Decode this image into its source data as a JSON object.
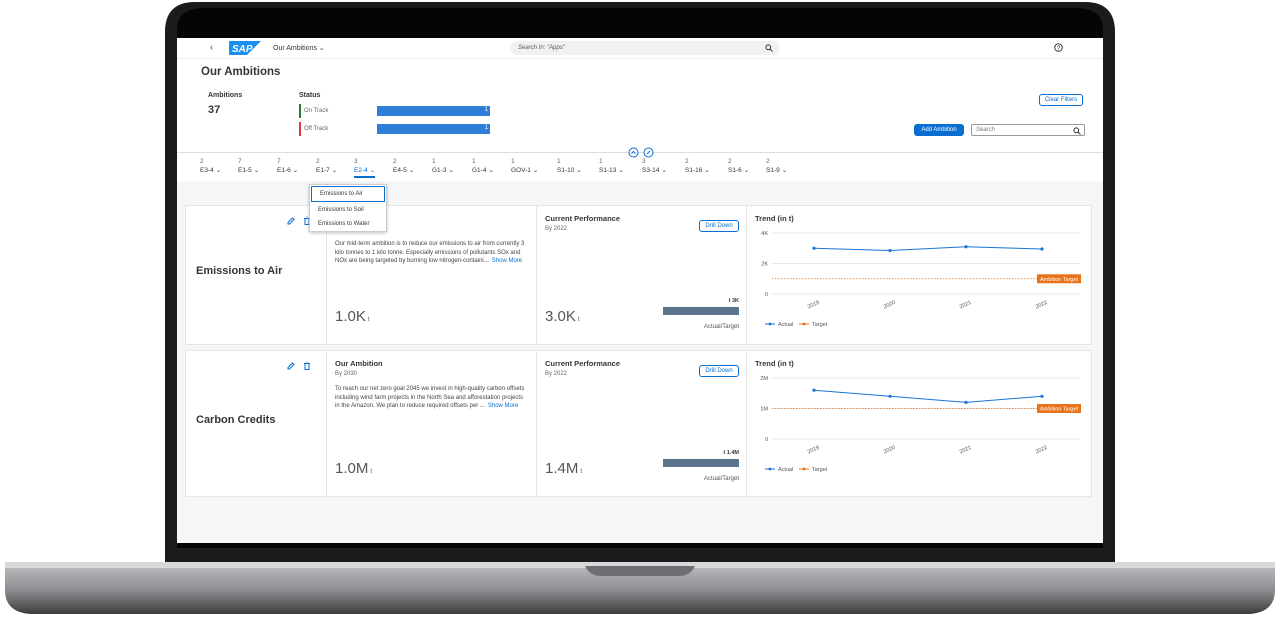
{
  "header": {
    "app": "Our Ambitions",
    "search_placeholder": "Search In: \"Apps\""
  },
  "page_title": "Our Ambitions",
  "kpis": {
    "ambitions_label": "Ambitions",
    "ambitions_value": 37,
    "status_label": "Status",
    "status": [
      {
        "name": "On Track",
        "value": 1,
        "color": "#2b7d2b"
      },
      {
        "name": "Off Track",
        "value": 1,
        "color": "#e03b3b"
      }
    ]
  },
  "actions": {
    "clear_filters": "Clear Filters",
    "add_ambition": "Add Ambition",
    "search_placeholder": "Search"
  },
  "tabs": [
    {
      "count": 2,
      "label": "E3-4"
    },
    {
      "count": 7,
      "label": "E1-5"
    },
    {
      "count": 7,
      "label": "E1-6"
    },
    {
      "count": 2,
      "label": "E1-7"
    },
    {
      "count": 3,
      "label": "E2-4",
      "selected": true
    },
    {
      "count": 2,
      "label": "E4-5"
    },
    {
      "count": 1,
      "label": "G1-3"
    },
    {
      "count": 1,
      "label": "G1-4"
    },
    {
      "count": 1,
      "label": "GOV-1"
    },
    {
      "count": 1,
      "label": "S1-10"
    },
    {
      "count": 1,
      "label": "S1-13"
    },
    {
      "count": 3,
      "label": "S3-14"
    },
    {
      "count": 2,
      "label": "S1-16"
    },
    {
      "count": 2,
      "label": "S1-6"
    },
    {
      "count": 2,
      "label": "S1-9"
    }
  ],
  "dropdown": [
    "Emissions to Air",
    "Emissions to Soil",
    "Emissions to Water"
  ],
  "cards": [
    {
      "name": "Emissions to Air",
      "ambition": {
        "text": "Our mid-term ambition is to reduce our emissions to air from currently 3 kilo tonnes to 1 kilo tonne. Especially emissions of pollutants SOx and NOx are being targeted by burning low nitrogen-containi...",
        "more": "Show More",
        "value": "1.0K",
        "unit": "t"
      },
      "performance": {
        "title": "Current Performance",
        "by": "By 2022",
        "button": "Drill Down",
        "value": "3.0K",
        "unit": "t",
        "bar_label": "t 3K",
        "caption": "Actual/Target"
      },
      "trend": {
        "title": "Trend (in t)",
        "categories": [
          "2019",
          "2020",
          "2021",
          "2022"
        ],
        "ylim": [
          0,
          4000
        ],
        "yticks": [
          {
            "value": 0,
            "label": "0"
          },
          {
            "value": 2000,
            "label": "2K"
          },
          {
            "value": 4000,
            "label": "4K"
          }
        ],
        "series": [
          {
            "name": "Actual",
            "color": "#1a73d9",
            "values": [
              3000,
              2850,
              3100,
              2950
            ]
          }
        ],
        "target": {
          "name": "Target",
          "label": "Ambition Target",
          "value": 1000,
          "color": "#e8731a"
        }
      }
    },
    {
      "name": "Carbon Credits",
      "ambition": {
        "title": "Our Ambition",
        "by": "By 2030",
        "text": "To reach our net zero goal 2045 we invest in high-quality carbon offsets including wind farm projects in the North Sea and afforestation projects in the Amazon. We plan to reduce required offsets per ...",
        "more": "Show More",
        "value": "1.0M",
        "unit": "t"
      },
      "performance": {
        "title": "Current Performance",
        "by": "By 2022",
        "button": "Drill Down",
        "value": "1.4M",
        "unit": "t",
        "bar_label": "t 1.4M",
        "caption": "Actual/Target"
      },
      "trend": {
        "title": "Trend (in t)",
        "categories": [
          "2019",
          "2020",
          "2021",
          "2022"
        ],
        "ylim": [
          0,
          2000000
        ],
        "yticks": [
          {
            "value": 0,
            "label": "0"
          },
          {
            "value": 1000000,
            "label": "1M"
          },
          {
            "value": 2000000,
            "label": "2M"
          }
        ],
        "series": [
          {
            "name": "Actual",
            "color": "#1a73d9",
            "values": [
              1600000,
              1400000,
              1200000,
              1400000
            ]
          }
        ],
        "target": {
          "name": "Target",
          "label": "Ambition Target",
          "value": 1000000,
          "color": "#e8731a"
        }
      }
    }
  ]
}
